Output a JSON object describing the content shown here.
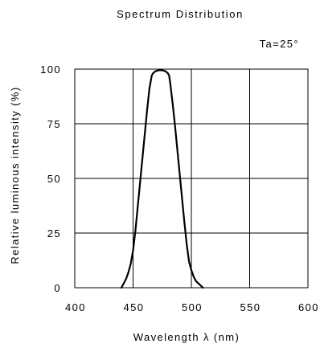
{
  "chart_data": {
    "type": "line",
    "title": "Spectrum Distribution",
    "annotation": "Ta=25°",
    "xlabel": "Wavelength  λ (nm)",
    "ylabel": "Relative luminous intensity   (%)",
    "xlim": [
      400,
      600
    ],
    "ylim": [
      0,
      100
    ],
    "x_ticks": [
      "400",
      "450",
      "500",
      "550",
      "600"
    ],
    "y_ticks": [
      "0",
      "25",
      "50",
      "75",
      "100"
    ],
    "grid": true,
    "legend": "none",
    "line_color": "#000000",
    "series": [
      {
        "x": [
          440,
          442,
          444,
          446,
          448,
          450,
          452,
          454,
          456,
          458,
          460,
          462,
          464,
          466,
          467,
          469,
          472,
          475,
          478,
          480,
          481,
          482,
          484,
          486,
          488,
          490,
          492,
          494,
          496,
          498,
          500,
          502,
          504,
          506,
          508,
          510
        ],
        "y": [
          0,
          2,
          4,
          7,
          11,
          17,
          26,
          37,
          48,
          59,
          70,
          81,
          91,
          97,
          98,
          99,
          99.5,
          99.5,
          99,
          98,
          97,
          93,
          84,
          74,
          63,
          52,
          41,
          30,
          20,
          12,
          8,
          5,
          3,
          2,
          1,
          0
        ]
      }
    ]
  }
}
